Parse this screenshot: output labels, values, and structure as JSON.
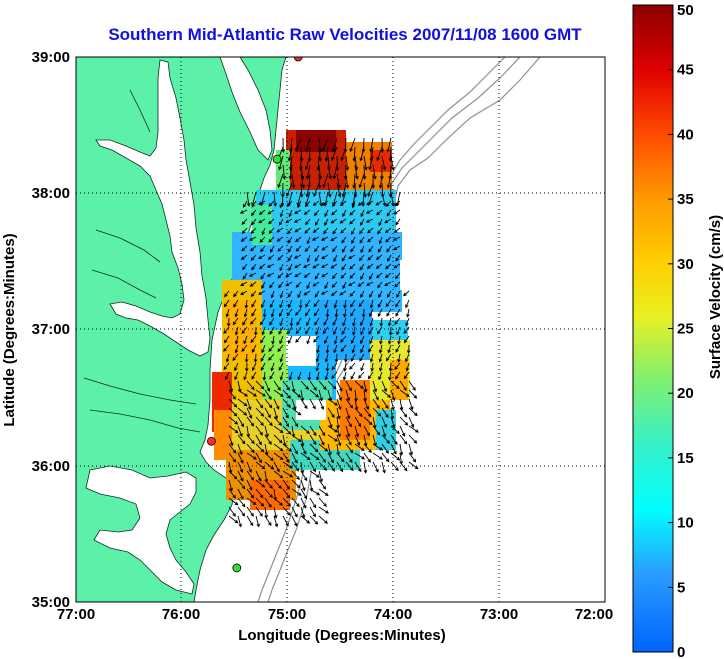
{
  "title": "Southern Mid-Atlantic Raw Velocities 2007/11/08 1600 GMT",
  "x_axis": {
    "label": "Longitude (Degrees:Minutes)",
    "ticks": [
      "77:00",
      "76:00",
      "75:00",
      "74:00",
      "73:00",
      "72:00"
    ]
  },
  "y_axis": {
    "label": "Latitude (Degrees:Minutes)",
    "ticks": [
      "39:00",
      "38:00",
      "37:00",
      "36:00",
      "35:00"
    ]
  },
  "colorbar": {
    "label": "Surface Velocity (cm/s)",
    "ticks": [
      "0",
      "5",
      "10",
      "15",
      "20",
      "25",
      "30",
      "35",
      "40",
      "45",
      "50"
    ],
    "min": 0,
    "max": 50
  },
  "map_view": {
    "lon_range": [
      -77,
      -72
    ],
    "lat_range": [
      35,
      39
    ],
    "grid": "dotted",
    "land_color": "#5cf0a8",
    "water_color": "#ffffff",
    "bathymetry_color": "#909090"
  },
  "stations": [
    {
      "lon": -74.9,
      "lat": 39.0,
      "color": "#ff2a2a"
    },
    {
      "lon": -75.1,
      "lat": 38.25,
      "color": "#30e030"
    },
    {
      "lon": -75.72,
      "lat": 36.18,
      "color": "#ff2a2a"
    },
    {
      "lon": -75.48,
      "lat": 35.25,
      "color": "#30e030"
    }
  ],
  "chart_data": {
    "type": "heatmap",
    "title": "Southern Mid-Atlantic Raw Velocities 2007/11/08 1600 GMT",
    "xlabel": "Longitude (Degrees:Minutes)",
    "ylabel": "Latitude (Degrees:Minutes)",
    "xlim": [
      -77,
      -72
    ],
    "ylim": [
      35,
      39
    ],
    "colorbar_range": [
      0,
      50
    ],
    "colorbar_label": "Surface Velocity (cm/s)",
    "regions": [
      {
        "lon": [
          -75.0,
          -74.4
        ],
        "lat": [
          38.0,
          38.45
        ],
        "speed_cm_s": 40
      },
      {
        "lon": [
          -75.3,
          -74.4
        ],
        "lat": [
          37.2,
          38.0
        ],
        "speed_cm_s": 12
      },
      {
        "lon": [
          -75.6,
          -75.2
        ],
        "lat": [
          36.4,
          37.4
        ],
        "speed_cm_s": 30
      },
      {
        "lon": [
          -75.3,
          -74.7
        ],
        "lat": [
          36.6,
          37.3
        ],
        "speed_cm_s": 10
      },
      {
        "lon": [
          -75.5,
          -75.0
        ],
        "lat": [
          35.7,
          36.4
        ],
        "speed_cm_s": 28
      },
      {
        "lon": [
          -75.0,
          -74.5
        ],
        "lat": [
          36.0,
          36.5
        ],
        "speed_cm_s": 27
      },
      {
        "lon": [
          -74.4,
          -73.9
        ],
        "lat": [
          36.3,
          36.9
        ],
        "speed_cm_s": 22
      }
    ]
  }
}
